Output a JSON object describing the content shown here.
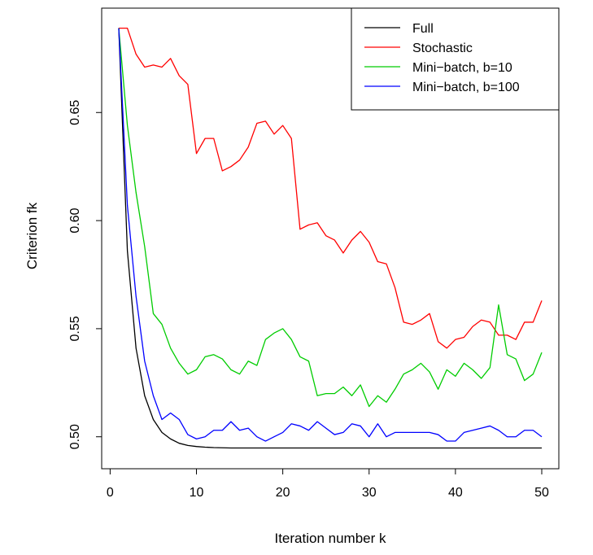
{
  "chart_data": {
    "type": "line",
    "xlabel": "Iteration number k",
    "ylabel": "Criterion fk",
    "xlim": [
      1,
      50
    ],
    "ylim": [
      0.495,
      0.69
    ],
    "xticks": [
      0,
      10,
      20,
      30,
      40,
      50
    ],
    "xtick_labels": [
      "0",
      "10",
      "20",
      "30",
      "40",
      "50"
    ],
    "yticks": [
      0.5,
      0.55,
      0.6,
      0.65
    ],
    "ytick_labels": [
      "0.50",
      "0.55",
      "0.60",
      "0.65"
    ],
    "grid": false,
    "legend_position": "top-right",
    "x": [
      1,
      2,
      3,
      4,
      5,
      6,
      7,
      8,
      9,
      10,
      11,
      12,
      13,
      14,
      15,
      16,
      17,
      18,
      19,
      20,
      21,
      22,
      23,
      24,
      25,
      26,
      27,
      28,
      29,
      30,
      31,
      32,
      33,
      34,
      35,
      36,
      37,
      38,
      39,
      40,
      41,
      42,
      43,
      44,
      45,
      46,
      47,
      48,
      49,
      50
    ],
    "series": [
      {
        "name": "Full",
        "color": "#000000",
        "values": [
          0.689,
          0.586,
          0.541,
          0.519,
          0.508,
          0.502,
          0.499,
          0.497,
          0.496,
          0.4955,
          0.4952,
          0.495,
          0.4949,
          0.4948,
          0.4948,
          0.4948,
          0.4948,
          0.4948,
          0.4948,
          0.4948,
          0.4948,
          0.4948,
          0.4948,
          0.4948,
          0.4948,
          0.4948,
          0.4948,
          0.4948,
          0.4948,
          0.4948,
          0.4948,
          0.4948,
          0.4948,
          0.4948,
          0.4948,
          0.4948,
          0.4948,
          0.4948,
          0.4948,
          0.4948,
          0.4948,
          0.4948,
          0.4948,
          0.4948,
          0.4948,
          0.4948,
          0.4948,
          0.4948,
          0.4948,
          0.4948
        ]
      },
      {
        "name": "Stochastic",
        "color": "#ff0000",
        "values": [
          0.689,
          0.689,
          0.677,
          0.671,
          0.672,
          0.671,
          0.675,
          0.667,
          0.663,
          0.631,
          0.638,
          0.638,
          0.623,
          0.625,
          0.628,
          0.634,
          0.645,
          0.646,
          0.64,
          0.644,
          0.638,
          0.596,
          0.598,
          0.599,
          0.593,
          0.591,
          0.585,
          0.591,
          0.595,
          0.59,
          0.581,
          0.58,
          0.569,
          0.553,
          0.552,
          0.554,
          0.557,
          0.544,
          0.541,
          0.545,
          0.546,
          0.551,
          0.554,
          0.553,
          0.547,
          0.547,
          0.545,
          0.553,
          0.553,
          0.563
        ]
      },
      {
        "name": "Mini−batch, b=10",
        "color": "#00cc00",
        "values": [
          0.689,
          0.644,
          0.613,
          0.588,
          0.557,
          0.552,
          0.541,
          0.534,
          0.529,
          0.531,
          0.537,
          0.538,
          0.536,
          0.531,
          0.529,
          0.535,
          0.533,
          0.545,
          0.548,
          0.55,
          0.545,
          0.537,
          0.535,
          0.519,
          0.52,
          0.52,
          0.523,
          0.519,
          0.524,
          0.514,
          0.519,
          0.516,
          0.522,
          0.529,
          0.531,
          0.534,
          0.53,
          0.522,
          0.531,
          0.528,
          0.534,
          0.531,
          0.527,
          0.532,
          0.561,
          0.538,
          0.536,
          0.526,
          0.529,
          0.539
        ]
      },
      {
        "name": "Mini−batch, b=100",
        "color": "#0000ff",
        "values": [
          0.689,
          0.607,
          0.565,
          0.535,
          0.519,
          0.508,
          0.511,
          0.508,
          0.501,
          0.499,
          0.5,
          0.503,
          0.503,
          0.507,
          0.503,
          0.504,
          0.5,
          0.498,
          0.5,
          0.502,
          0.506,
          0.505,
          0.503,
          0.507,
          0.504,
          0.501,
          0.502,
          0.506,
          0.505,
          0.5,
          0.506,
          0.5,
          0.502,
          0.502,
          0.502,
          0.502,
          0.502,
          0.501,
          0.498,
          0.498,
          0.502,
          0.503,
          0.504,
          0.505,
          0.503,
          0.5,
          0.5,
          0.503,
          0.503,
          0.5
        ]
      }
    ]
  }
}
